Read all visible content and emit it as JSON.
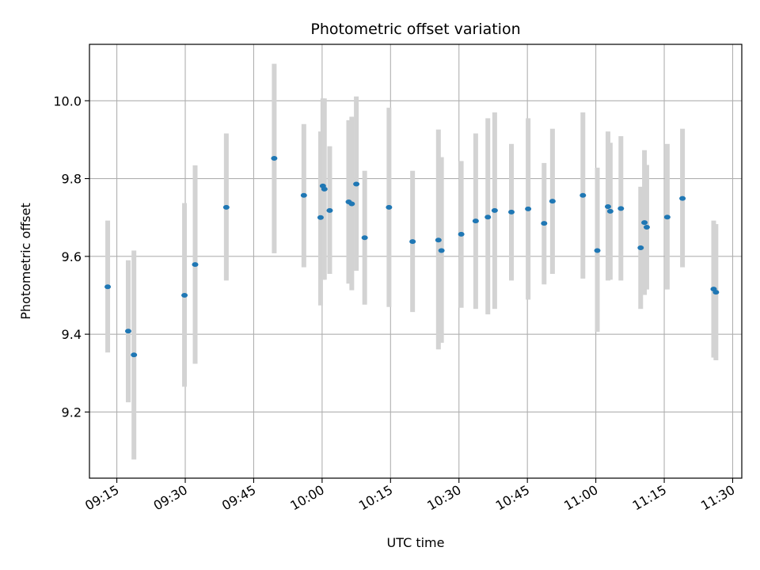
{
  "chart_data": {
    "type": "scatter",
    "title": "Photometric offset variation",
    "xlabel": "UTC time",
    "ylabel": "Photometric offset",
    "xlim": [
      "09:09",
      "11:32"
    ],
    "ylim": [
      9.03,
      10.145
    ],
    "grid": true,
    "x_ticks": [
      "09:15",
      "09:30",
      "09:45",
      "10:00",
      "10:15",
      "10:30",
      "10:45",
      "11:00",
      "11:15",
      "11:30"
    ],
    "y_ticks": [
      "9.2",
      "9.4",
      "9.6",
      "9.8",
      "10.0"
    ],
    "colors": {
      "marker": "#1f77b4",
      "errorbar": "#d3d3d3",
      "grid": "#b0b0b0"
    },
    "series": [
      {
        "points": [
          {
            "t": "09:13:00",
            "y": 9.522,
            "lo": 9.353,
            "hi": 9.692
          },
          {
            "t": "09:17:30",
            "y": 9.408,
            "lo": 9.225,
            "hi": 9.59
          },
          {
            "t": "09:18:45",
            "y": 9.347,
            "lo": 9.078,
            "hi": 9.615
          },
          {
            "t": "09:29:50",
            "y": 9.5,
            "lo": 9.265,
            "hi": 9.737
          },
          {
            "t": "09:32:10",
            "y": 9.579,
            "lo": 9.324,
            "hi": 9.834
          },
          {
            "t": "09:39:00",
            "y": 9.726,
            "lo": 9.538,
            "hi": 9.916
          },
          {
            "t": "09:49:30",
            "y": 9.852,
            "lo": 9.608,
            "hi": 10.095
          },
          {
            "t": "09:56:00",
            "y": 9.757,
            "lo": 9.572,
            "hi": 9.94
          },
          {
            "t": "09:59:40",
            "y": 9.7,
            "lo": 9.474,
            "hi": 9.921
          },
          {
            "t": "10:00:10",
            "y": 9.781,
            "lo": 9.54,
            "hi": 10.006
          },
          {
            "t": "10:00:30",
            "y": 9.773,
            "lo": 9.54,
            "hi": 10.006
          },
          {
            "t": "10:01:40",
            "y": 9.718,
            "lo": 9.555,
            "hi": 9.883
          },
          {
            "t": "10:05:50",
            "y": 9.74,
            "lo": 9.53,
            "hi": 9.95
          },
          {
            "t": "10:06:30",
            "y": 9.735,
            "lo": 9.513,
            "hi": 9.959
          },
          {
            "t": "10:07:30",
            "y": 9.786,
            "lo": 9.563,
            "hi": 10.011
          },
          {
            "t": "10:09:20",
            "y": 9.648,
            "lo": 9.476,
            "hi": 9.82
          },
          {
            "t": "10:14:40",
            "y": 9.726,
            "lo": 9.47,
            "hi": 9.982
          },
          {
            "t": "10:19:50",
            "y": 9.638,
            "lo": 9.457,
            "hi": 9.82
          },
          {
            "t": "10:25:30",
            "y": 9.642,
            "lo": 9.361,
            "hi": 9.926
          },
          {
            "t": "10:26:10",
            "y": 9.615,
            "lo": 9.378,
            "hi": 9.855
          },
          {
            "t": "10:30:30",
            "y": 9.657,
            "lo": 9.468,
            "hi": 9.845
          },
          {
            "t": "10:33:40",
            "y": 9.691,
            "lo": 9.465,
            "hi": 9.916
          },
          {
            "t": "10:36:20",
            "y": 9.701,
            "lo": 9.451,
            "hi": 9.955
          },
          {
            "t": "10:37:50",
            "y": 9.718,
            "lo": 9.465,
            "hi": 9.97
          },
          {
            "t": "10:41:30",
            "y": 9.714,
            "lo": 9.538,
            "hi": 9.889
          },
          {
            "t": "10:45:10",
            "y": 9.722,
            "lo": 9.489,
            "hi": 9.955
          },
          {
            "t": "10:48:40",
            "y": 9.685,
            "lo": 9.528,
            "hi": 9.84
          },
          {
            "t": "10:50:30",
            "y": 9.742,
            "lo": 9.555,
            "hi": 9.928
          },
          {
            "t": "10:57:10",
            "y": 9.757,
            "lo": 9.543,
            "hi": 9.97
          },
          {
            "t": "11:00:20",
            "y": 9.615,
            "lo": 9.406,
            "hi": 9.828
          },
          {
            "t": "11:02:40",
            "y": 9.728,
            "lo": 9.538,
            "hi": 9.921
          },
          {
            "t": "11:03:10",
            "y": 9.716,
            "lo": 9.54,
            "hi": 9.892
          },
          {
            "t": "11:05:30",
            "y": 9.723,
            "lo": 9.538,
            "hi": 9.909
          },
          {
            "t": "11:09:50",
            "y": 9.622,
            "lo": 9.465,
            "hi": 9.779
          },
          {
            "t": "11:10:40",
            "y": 9.687,
            "lo": 9.501,
            "hi": 9.873
          },
          {
            "t": "11:11:10",
            "y": 9.675,
            "lo": 9.515,
            "hi": 9.835
          },
          {
            "t": "11:15:40",
            "y": 9.701,
            "lo": 9.515,
            "hi": 9.889
          },
          {
            "t": "11:19:00",
            "y": 9.749,
            "lo": 9.572,
            "hi": 9.928
          },
          {
            "t": "11:25:50",
            "y": 9.516,
            "lo": 9.34,
            "hi": 9.692
          },
          {
            "t": "11:26:20",
            "y": 9.508,
            "lo": 9.333,
            "hi": 9.683
          }
        ]
      }
    ]
  }
}
